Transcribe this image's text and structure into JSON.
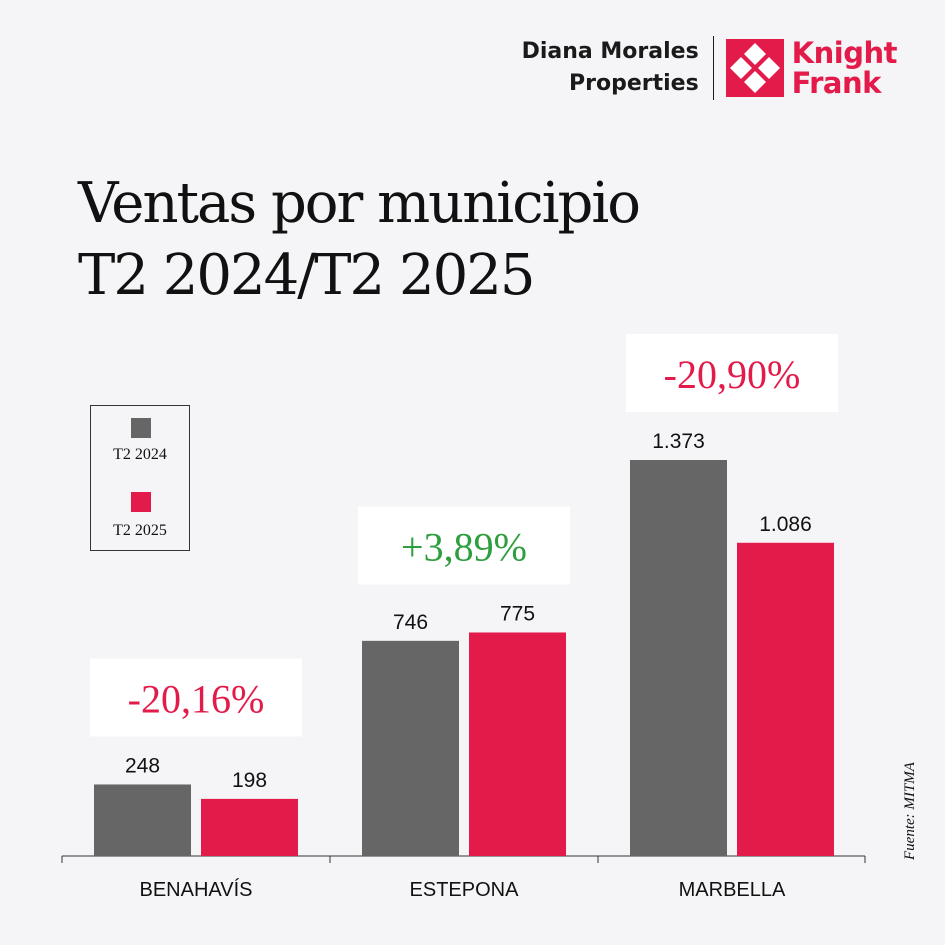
{
  "brand": {
    "partner_line1": "Diana Morales",
    "partner_line2": "Properties",
    "kf_line1": "Knight",
    "kf_line2": "Frank",
    "accent": "#e31b4a",
    "logo_icon": "knight-frank-mark-icon"
  },
  "title": {
    "line1": "Ventas por municipio",
    "line2": "T2 2024/T2 2025"
  },
  "source": "Fuente: MITMA",
  "chart_data": {
    "type": "bar",
    "title": "Ventas por municipio T2 2024/T2 2025",
    "categories": [
      "BENAHAVÍS",
      "ESTEPONA",
      "MARBELLA"
    ],
    "series": [
      {
        "name": "T2 2024",
        "color": "#666666",
        "values": [
          248,
          746,
          1373
        ],
        "labels": [
          "248",
          "746",
          "1.373"
        ]
      },
      {
        "name": "T2 2025",
        "color": "#e31b4a",
        "values": [
          198,
          775,
          1086
        ],
        "labels": [
          "198",
          "775",
          "1.086"
        ]
      }
    ],
    "changes": [
      {
        "text": "-20,16%",
        "color": "#e31b4a"
      },
      {
        "text": "+3,89%",
        "color": "#2e9e3e"
      },
      {
        "text": "-20,90%",
        "color": "#e31b4a"
      }
    ],
    "ylim": [
      0,
      1373
    ],
    "xlabel": "",
    "ylabel": "",
    "legend": "left"
  }
}
